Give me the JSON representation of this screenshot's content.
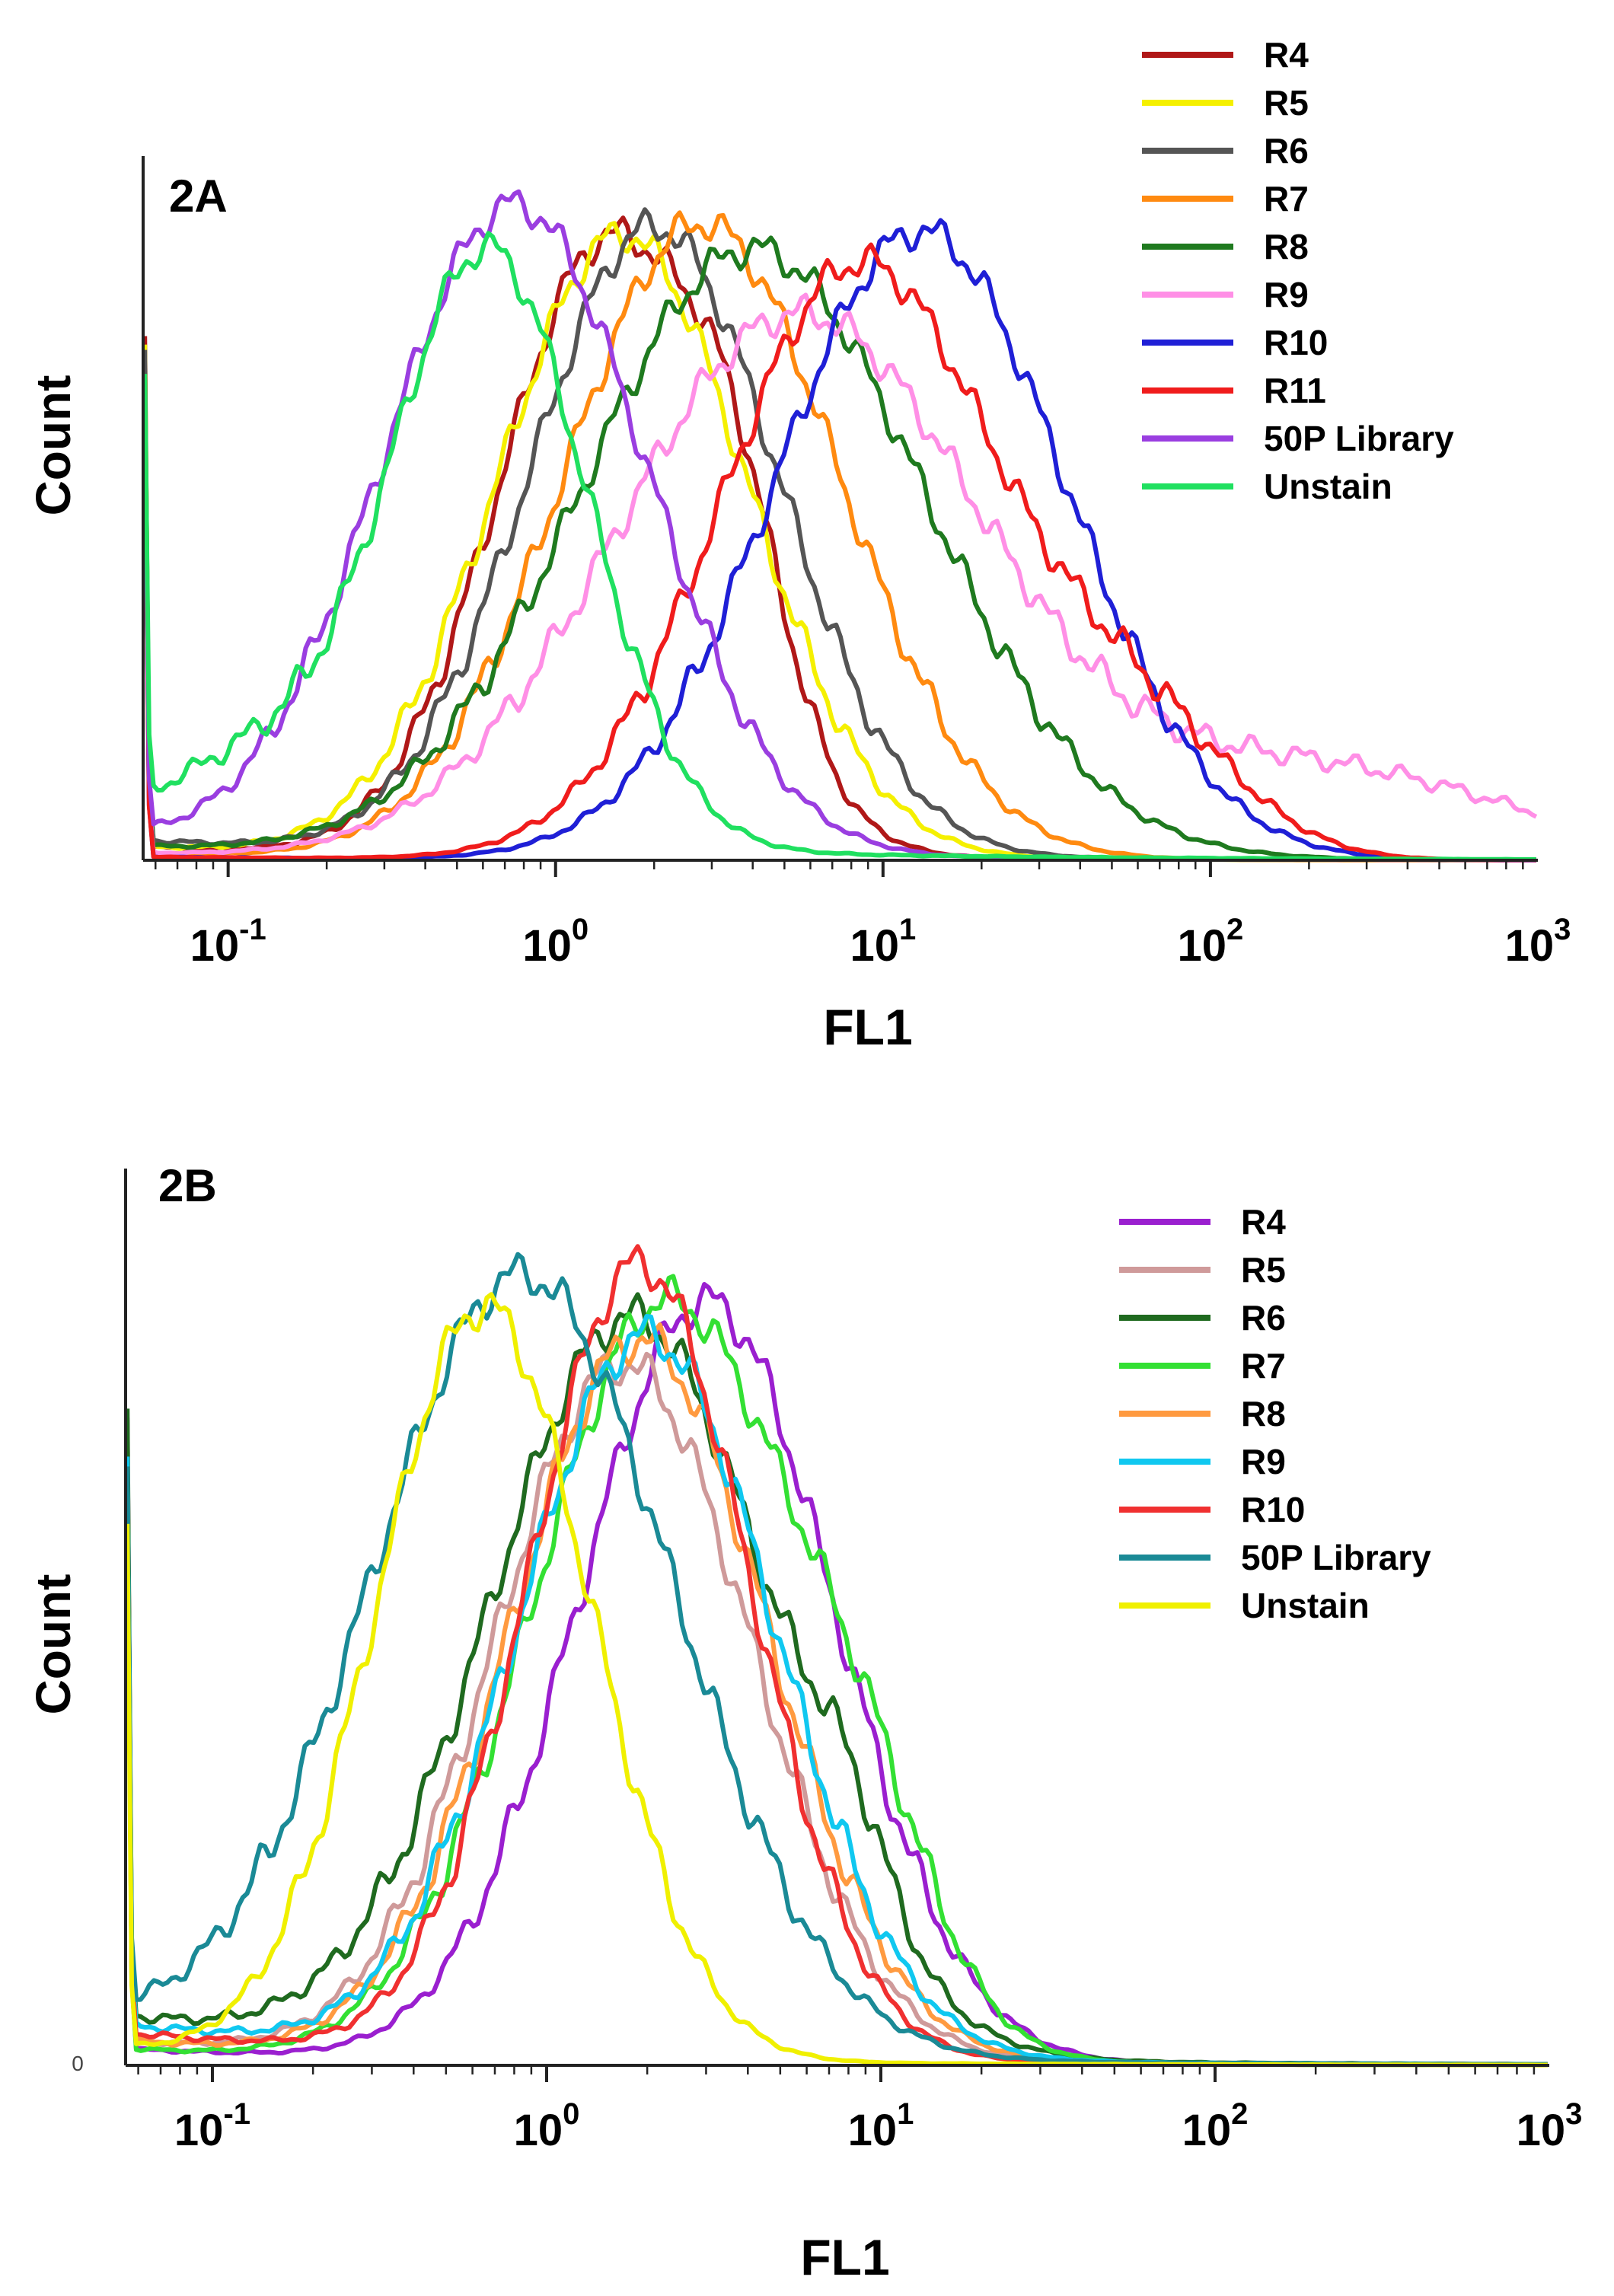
{
  "chart_data": [
    {
      "type": "line",
      "panel_label": "2A",
      "xlabel": "FL1",
      "ylabel": "Count",
      "x_scale": "log",
      "xlim": [
        0.055,
        1000
      ],
      "ylim": [
        0,
        1
      ],
      "legend_position": "top-right",
      "x_ticks": [
        {
          "base": "10",
          "exp": "-1"
        },
        {
          "base": "10",
          "exp": "0"
        },
        {
          "base": "10",
          "exp": "1"
        },
        {
          "base": "10",
          "exp": "2"
        },
        {
          "base": "10",
          "exp": "3"
        }
      ],
      "x_tick_values": [
        0.1,
        1,
        10,
        100,
        1000
      ],
      "series": [
        {
          "name": "R4",
          "color": "#b01818",
          "peaks": [
            {
              "mu": 1.45,
              "sigma": 0.33,
              "amp": 0.93
            },
            {
              "mu": 3.5,
              "sigma": 0.15,
              "amp": 0.22
            }
          ],
          "baseline": 0.02
        },
        {
          "name": "R5",
          "color": "#f5f000",
          "peaks": [
            {
              "mu": 1.6,
              "sigma": 0.38,
              "amp": 0.94
            }
          ],
          "baseline": 0.02
        },
        {
          "name": "R6",
          "color": "#555555",
          "peaks": [
            {
              "mu": 2.0,
              "sigma": 0.38,
              "amp": 0.95
            }
          ],
          "baseline": 0.03
        },
        {
          "name": "R7",
          "color": "#ff8a10",
          "peaks": [
            {
              "mu": 2.8,
              "sigma": 0.42,
              "amp": 0.96
            }
          ],
          "baseline": 0.01
        },
        {
          "name": "R8",
          "color": "#1f7a1f",
          "peaks": [
            {
              "mu": 4.0,
              "sigma": 0.52,
              "amp": 0.92
            }
          ],
          "baseline": 0.02
        },
        {
          "name": "R9",
          "color": "#ff8fe6",
          "peaks": [
            {
              "mu": 5.5,
              "sigma": 0.55,
              "amp": 0.82
            },
            {
              "mu": 200,
              "sigma": 0.6,
              "amp": 0.14
            }
          ],
          "baseline": 0.01
        },
        {
          "name": "R10",
          "color": "#1f1fd6",
          "peaks": [
            {
              "mu": 13,
              "sigma": 0.44,
              "amp": 0.95
            }
          ],
          "baseline": 0.005
        },
        {
          "name": "R11",
          "color": "#f01c1c",
          "peaks": [
            {
              "mu": 8.5,
              "sigma": 0.42,
              "amp": 0.9
            },
            {
              "mu": 60,
              "sigma": 0.3,
              "amp": 0.18
            }
          ],
          "baseline": 0.005
        },
        {
          "name": "50P Library",
          "color": "#9a3ee0",
          "peaks": [
            {
              "mu": 0.75,
              "sigma": 0.4,
              "amp": 0.98
            }
          ],
          "baseline": 0.03
        },
        {
          "name": "Unstain",
          "color": "#20e060",
          "peaks": [
            {
              "mu": 0.62,
              "sigma": 0.3,
              "amp": 0.9
            },
            {
              "mu": 0.12,
              "sigma": 0.25,
              "amp": 0.1
            }
          ],
          "baseline": 0.06
        }
      ]
    },
    {
      "type": "line",
      "panel_label": "2B",
      "xlabel": "FL1",
      "ylabel": "Count",
      "x_scale": "log",
      "xlim": [
        0.055,
        1000
      ],
      "ylim": [
        0,
        1
      ],
      "y_zero_label": "0",
      "legend_position": "top-right",
      "x_ticks": [
        {
          "base": "10",
          "exp": "-1"
        },
        {
          "base": "10",
          "exp": "0"
        },
        {
          "base": "10",
          "exp": "1"
        },
        {
          "base": "10",
          "exp": "2"
        },
        {
          "base": "10",
          "exp": "3"
        }
      ],
      "x_tick_values": [
        0.1,
        1,
        10,
        100,
        1000
      ],
      "series": [
        {
          "name": "R4",
          "color": "#9a1fcf",
          "peaks": [
            {
              "mu": 3.0,
              "sigma": 0.38,
              "amp": 0.93
            }
          ],
          "baseline": 0.02
        },
        {
          "name": "R5",
          "color": "#cf9a9a",
          "peaks": [
            {
              "mu": 1.7,
              "sigma": 0.38,
              "amp": 0.85
            }
          ],
          "baseline": 0.03
        },
        {
          "name": "R6",
          "color": "#1f6a1f",
          "peaks": [
            {
              "mu": 1.8,
              "sigma": 0.42,
              "amp": 0.9
            },
            {
              "mu": 8,
              "sigma": 0.12,
              "amp": 0.1
            }
          ],
          "baseline": 0.06
        },
        {
          "name": "R7",
          "color": "#33e033",
          "peaks": [
            {
              "mu": 2.3,
              "sigma": 0.4,
              "amp": 0.93
            },
            {
              "mu": 9,
              "sigma": 0.2,
              "amp": 0.15
            }
          ],
          "baseline": 0.02
        },
        {
          "name": "R8",
          "color": "#ff9a40",
          "peaks": [
            {
              "mu": 1.9,
              "sigma": 0.38,
              "amp": 0.88
            }
          ],
          "baseline": 0.03
        },
        {
          "name": "R9",
          "color": "#10c8f0",
          "peaks": [
            {
              "mu": 2.0,
              "sigma": 0.38,
              "amp": 0.88
            }
          ],
          "baseline": 0.05
        },
        {
          "name": "R10",
          "color": "#f03030",
          "peaks": [
            {
              "mu": 1.9,
              "sigma": 0.33,
              "amp": 0.97
            }
          ],
          "baseline": 0.04
        },
        {
          "name": "50P Library",
          "color": "#1a8a96",
          "peaks": [
            {
              "mu": 0.85,
              "sigma": 0.45,
              "amp": 0.95
            }
          ],
          "baseline": 0.05
        },
        {
          "name": "Unstain",
          "color": "#f0f000",
          "peaks": [
            {
              "mu": 0.65,
              "sigma": 0.32,
              "amp": 0.92
            }
          ],
          "baseline": 0.02
        }
      ]
    }
  ]
}
